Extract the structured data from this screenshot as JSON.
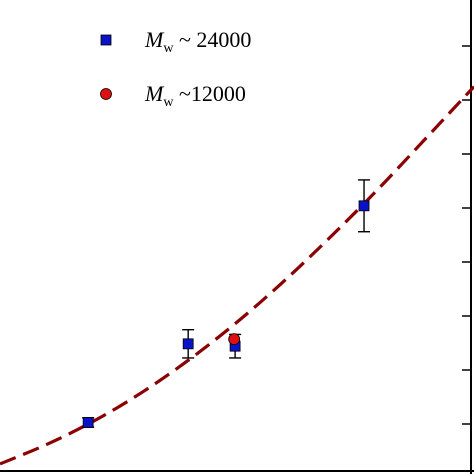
{
  "chart_data": {
    "type": "scatter",
    "title": "",
    "xlabel": "",
    "ylabel": "",
    "xlim": [
      0,
      100
    ],
    "ylim": [
      0,
      100
    ],
    "grid": false,
    "legend_position": "top-left",
    "series": [
      {
        "name": "Mw ~ 24000",
        "label_symbol": "M",
        "label_subscript": "w",
        "label_rest": " ~ 24000",
        "marker": "square",
        "color": "#0a12c8",
        "points": [
          {
            "x": 18.6,
            "y": 10.3,
            "err": 1.0
          },
          {
            "x": 39.7,
            "y": 27.0,
            "err": 3.0
          },
          {
            "x": 49.6,
            "y": 26.5,
            "err": 2.5
          },
          {
            "x": 76.8,
            "y": 56.3,
            "err": 5.5
          }
        ]
      },
      {
        "name": "Mw ~12000",
        "label_symbol": "M",
        "label_subscript": "w",
        "label_rest": " ~12000",
        "marker": "circle",
        "color": "#e01010",
        "points": [
          {
            "x": 49.4,
            "y": 28.0,
            "err": 0
          }
        ]
      }
    ],
    "fit": {
      "style": "dashed",
      "color": "#8b0000",
      "points": [
        {
          "x": 0.0,
          "y": 1.5
        },
        {
          "x": 10.0,
          "y": 5.6
        },
        {
          "x": 20.0,
          "y": 10.6
        },
        {
          "x": 30.0,
          "y": 16.6
        },
        {
          "x": 40.0,
          "y": 23.6
        },
        {
          "x": 50.0,
          "y": 31.5
        },
        {
          "x": 60.0,
          "y": 40.3
        },
        {
          "x": 70.0,
          "y": 49.9
        },
        {
          "x": 80.0,
          "y": 60.0
        },
        {
          "x": 90.0,
          "y": 70.8
        },
        {
          "x": 100.0,
          "y": 81.6
        }
      ]
    }
  }
}
